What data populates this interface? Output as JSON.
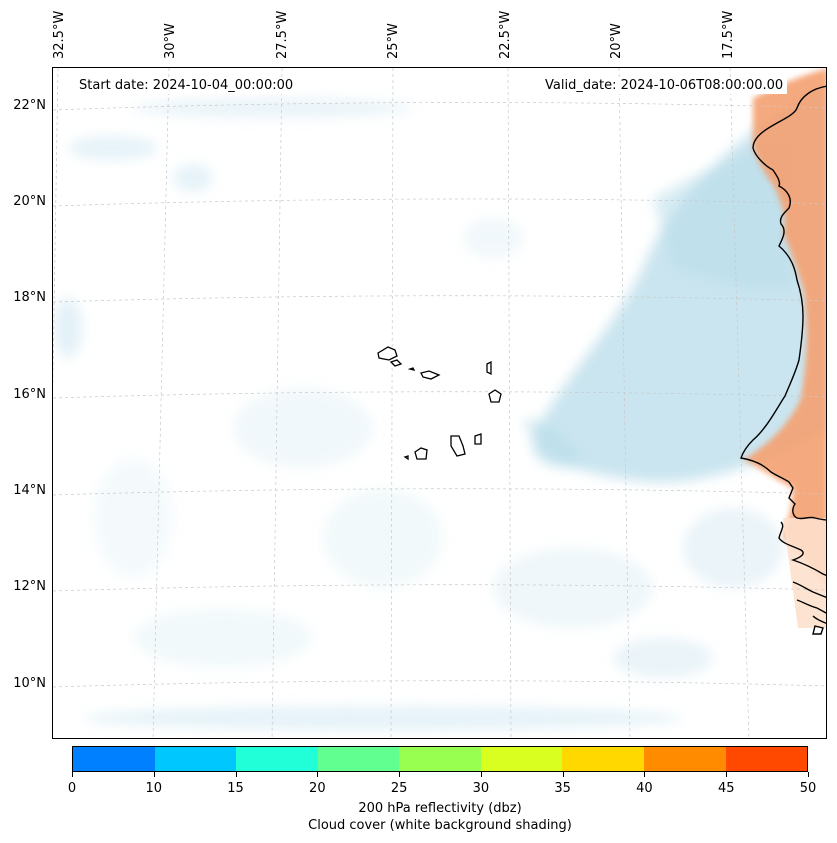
{
  "annotations": {
    "start_date": "Start date: 2024-10-04_00:00:00",
    "valid_date": "Valid_date: 2024-10-06T08:00:00.00"
  },
  "longitude_labels": [
    "32.5°W",
    "30°W",
    "27.5°W",
    "25°W",
    "22.5°W",
    "20°W",
    "17.5°W"
  ],
  "latitude_labels": [
    "22°N",
    "20°N",
    "18°N",
    "16°N",
    "14°N",
    "12°N",
    "10°N"
  ],
  "colorbar": {
    "ticks": [
      "0",
      "10",
      "15",
      "20",
      "25",
      "30",
      "35",
      "40",
      "45",
      "50"
    ],
    "colors": [
      "#0080ff",
      "#00c8ff",
      "#20ffd8",
      "#60ff90",
      "#98ff50",
      "#d8ff20",
      "#ffd800",
      "#ff8c00",
      "#ff4800"
    ],
    "label_line1": "200 hPa reflectivity (dbz)",
    "label_line2": "Cloud cover (white background shading)"
  },
  "colors": {
    "cloud": "#b8dcea",
    "land": "#f4a070",
    "land_light": "#fde0cc",
    "coast": "#000000",
    "grid": "#c8c8c8"
  }
}
